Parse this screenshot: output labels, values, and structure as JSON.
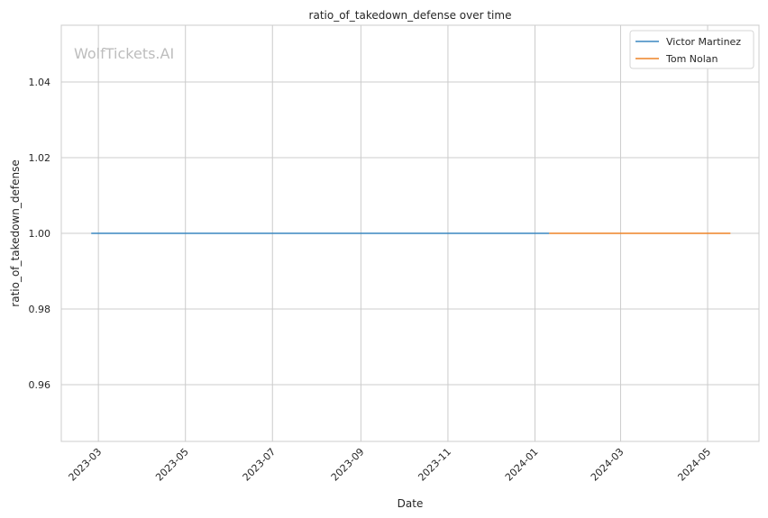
{
  "chart_data": {
    "type": "line",
    "title": "ratio_of_takedown_defense over time",
    "xlabel": "Date",
    "ylabel": "ratio_of_takedown_defense",
    "watermark": "WolfTickets.AI",
    "ylim": [
      0.945,
      1.055
    ],
    "xlim": [
      "2023-02-03",
      "2024-06-06"
    ],
    "yticks": [
      0.96,
      0.98,
      1.0,
      1.02,
      1.04
    ],
    "ytick_labels": [
      "0.96",
      "0.98",
      "1.00",
      "1.02",
      "1.04"
    ],
    "xticks": [
      "2023-03-01",
      "2023-05-01",
      "2023-07-01",
      "2023-09-01",
      "2023-11-01",
      "2024-01-01",
      "2024-03-01",
      "2024-05-01"
    ],
    "xtick_labels": [
      "2023-03",
      "2023-05",
      "2023-07",
      "2023-09",
      "2023-11",
      "2024-01",
      "2024-03",
      "2024-05"
    ],
    "grid": true,
    "legend_position": "top-right",
    "series": [
      {
        "name": "Victor Martinez",
        "color": "#3a87c0",
        "x": [
          "2023-02-24",
          "2024-01-11"
        ],
        "y": [
          1.0,
          1.0
        ]
      },
      {
        "name": "Tom Nolan",
        "color": "#ee8427",
        "x": [
          "2024-01-11",
          "2024-05-17"
        ],
        "y": [
          1.0,
          1.0
        ]
      }
    ]
  }
}
